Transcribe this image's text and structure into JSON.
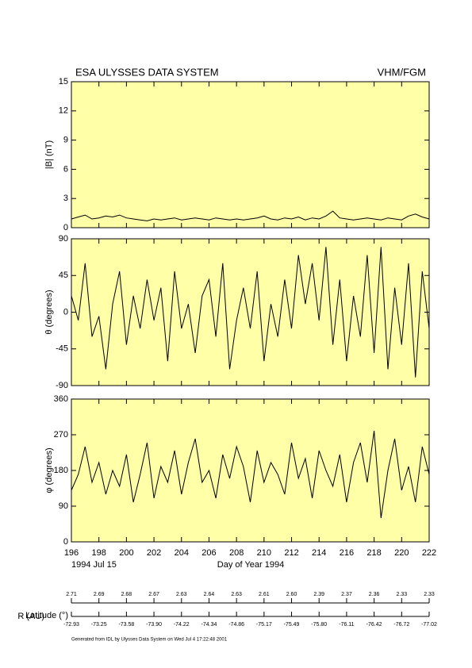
{
  "header": {
    "title": "ESA ULYSSES DATA SYSTEM",
    "instrument": "VHM/FGM"
  },
  "chart_data": [
    {
      "type": "line",
      "ylabel": "|B| (nT)",
      "color": "#000000",
      "background": "#ffffa8",
      "xlim": [
        196,
        222
      ],
      "ylim": [
        0,
        15
      ],
      "yticks": [
        0,
        3,
        6,
        9,
        12,
        15
      ],
      "x": [
        196,
        196.5,
        197,
        197.5,
        198,
        198.5,
        199,
        199.5,
        200,
        200.5,
        201,
        201.5,
        202,
        202.5,
        203,
        203.5,
        204,
        204.5,
        205,
        205.5,
        206,
        206.5,
        207,
        207.5,
        208,
        208.5,
        209,
        209.5,
        210,
        210.5,
        211,
        211.5,
        212,
        212.5,
        213,
        213.5,
        214,
        214.5,
        215,
        215.5,
        216,
        216.5,
        217,
        217.5,
        218,
        218.5,
        219,
        219.5,
        220,
        220.5,
        221,
        221.5,
        222
      ],
      "values": [
        0.9,
        1.1,
        1.3,
        0.9,
        1.0,
        1.2,
        1.1,
        1.3,
        1.0,
        0.9,
        0.8,
        0.7,
        0.9,
        0.8,
        0.9,
        1.0,
        0.8,
        0.9,
        1.0,
        0.9,
        0.8,
        1.0,
        0.9,
        0.8,
        0.9,
        0.8,
        0.9,
        1.0,
        1.2,
        0.9,
        0.8,
        1.0,
        0.9,
        1.1,
        0.8,
        1.0,
        0.9,
        1.2,
        1.7,
        1.0,
        0.9,
        0.8,
        0.9,
        1.0,
        0.9,
        0.8,
        1.0,
        0.9,
        0.8,
        1.2,
        1.4,
        1.1,
        0.9
      ]
    },
    {
      "type": "line",
      "ylabel": "θ (degrees)",
      "color": "#000000",
      "background": "#ffffa8",
      "xlim": [
        196,
        222
      ],
      "ylim": [
        -90,
        90
      ],
      "yticks": [
        -90,
        -45,
        0,
        45,
        90
      ],
      "x": [
        196,
        196.5,
        197,
        197.5,
        198,
        198.5,
        199,
        199.5,
        200,
        200.5,
        201,
        201.5,
        202,
        202.5,
        203,
        203.5,
        204,
        204.5,
        205,
        205.5,
        206,
        206.5,
        207,
        207.5,
        208,
        208.5,
        209,
        209.5,
        210,
        210.5,
        211,
        211.5,
        212,
        212.5,
        213,
        213.5,
        214,
        214.5,
        215,
        215.5,
        216,
        216.5,
        217,
        217.5,
        218,
        218.5,
        219,
        219.5,
        220,
        220.5,
        221,
        221.5,
        222
      ],
      "values": [
        20,
        -10,
        60,
        -30,
        -5,
        -70,
        10,
        50,
        -40,
        20,
        -20,
        40,
        -10,
        30,
        -60,
        50,
        -20,
        10,
        -50,
        20,
        40,
        -30,
        60,
        -70,
        -10,
        30,
        -20,
        50,
        -60,
        10,
        -30,
        40,
        -20,
        70,
        10,
        60,
        -10,
        80,
        -40,
        40,
        -60,
        20,
        -30,
        70,
        -50,
        80,
        -70,
        30,
        -40,
        60,
        -80,
        50,
        -20
      ]
    },
    {
      "type": "line",
      "ylabel": "φ (degrees)",
      "color": "#000000",
      "background": "#ffffa8",
      "xlim": [
        196,
        222
      ],
      "ylim": [
        0,
        360
      ],
      "yticks": [
        0,
        90,
        180,
        270,
        360
      ],
      "xticks": [
        196,
        198,
        200,
        202,
        204,
        206,
        208,
        210,
        212,
        214,
        216,
        218,
        220,
        222
      ],
      "xlabel": "Day of Year 1994",
      "start_date": "1994 Jul 15",
      "x": [
        196,
        196.5,
        197,
        197.5,
        198,
        198.5,
        199,
        199.5,
        200,
        200.5,
        201,
        201.5,
        202,
        202.5,
        203,
        203.5,
        204,
        204.5,
        205,
        205.5,
        206,
        206.5,
        207,
        207.5,
        208,
        208.5,
        209,
        209.5,
        210,
        210.5,
        211,
        211.5,
        212,
        212.5,
        213,
        213.5,
        214,
        214.5,
        215,
        215.5,
        216,
        216.5,
        217,
        217.5,
        218,
        218.5,
        219,
        219.5,
        220,
        220.5,
        221,
        221.5,
        222
      ],
      "values": [
        130,
        170,
        240,
        150,
        200,
        120,
        180,
        140,
        220,
        100,
        170,
        250,
        110,
        190,
        150,
        230,
        120,
        200,
        260,
        150,
        180,
        110,
        220,
        160,
        240,
        190,
        100,
        230,
        150,
        200,
        170,
        120,
        250,
        160,
        210,
        110,
        230,
        180,
        140,
        220,
        100,
        200,
        250,
        150,
        280,
        60,
        180,
        260,
        130,
        190,
        100,
        240,
        170
      ]
    }
  ],
  "orbit": {
    "r_label": "R (AU)",
    "r": [
      "2.71",
      "2.69",
      "2.68",
      "2.67",
      "2.63",
      "2.64",
      "2.63",
      "2.61",
      "2.60",
      "2.39",
      "2.37",
      "2.36",
      "2.33",
      "2.33"
    ],
    "lat_label": "Latitude (°)",
    "lat": [
      "-72.93",
      "-73.25",
      "-73.58",
      "-73.90",
      "-74.22",
      "-74.34",
      "-74.86",
      "-75.17",
      "-75.49",
      "-75.80",
      "-76.11",
      "-76.42",
      "-76.72",
      "-77.02"
    ]
  },
  "footer": "Generated from IDL by Ulysses Data System on Wed Jul 4 17:22:48 2001"
}
